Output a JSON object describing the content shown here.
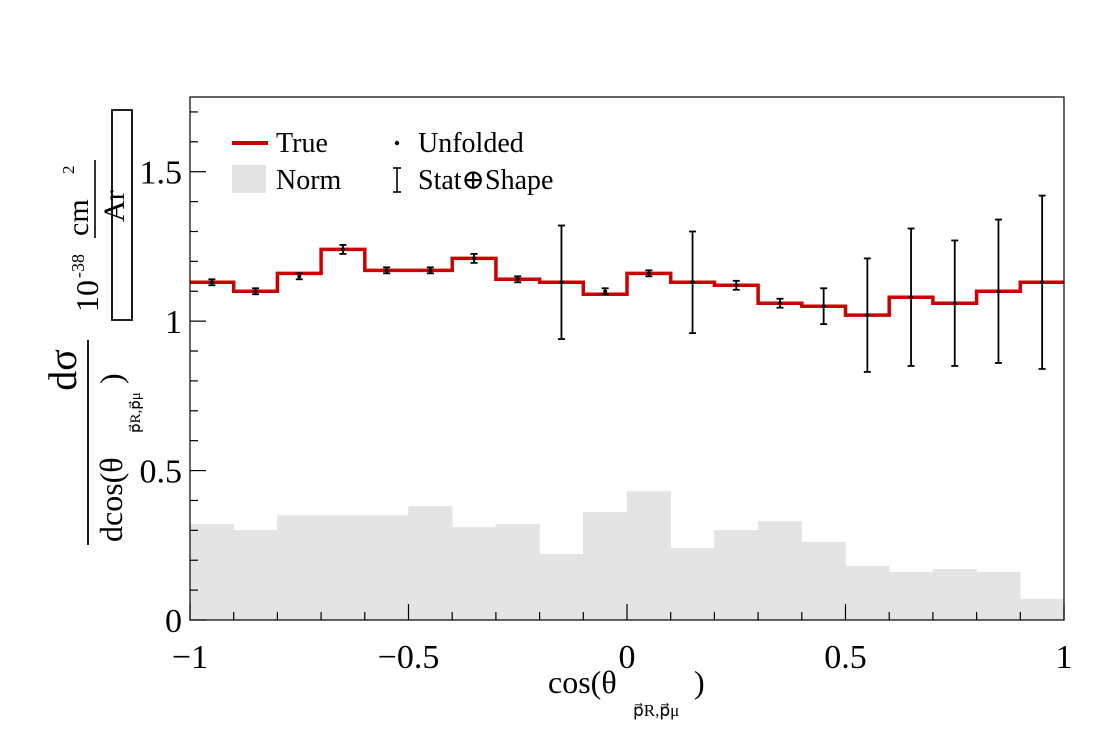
{
  "colors": {
    "true_line": "#cc0000",
    "norm_fill": "#e4e4e4",
    "unfolded": "#000000"
  },
  "legend": {
    "true_label": "True",
    "norm_label": "Norm",
    "unfolded_label": "Unfolded",
    "stat_label": "Stat⊕Shape"
  },
  "axes": {
    "x_title_main": "cos(θ",
    "x_title_sub": "p⃗R,p⃗μ",
    "x_title_close": ")",
    "y_title_num": "dσ",
    "y_title_den": "dcos(θ",
    "y_title_den_sub": "p⃗R,p⃗μ",
    "y_title_den_close": ")",
    "y_units_prefix": "10",
    "y_units_exp": "-38",
    "y_units_num": "cm",
    "y_units_num_exp": "2",
    "y_units_den": "Ar"
  },
  "chart_data": {
    "type": "bar",
    "xlabel": "cos(θ p⃗R,p⃗μ)",
    "ylabel": "dσ / dcos(θ p⃗R,p⃗μ) [10^-38 cm^2 / Ar]",
    "xlim": [
      -1,
      1
    ],
    "ylim": [
      0,
      1.75
    ],
    "x_ticks": [
      -1,
      -0.5,
      0,
      0.5,
      1
    ],
    "x_tick_labels": [
      "−1",
      "−0.5",
      "0",
      "0.5",
      "1"
    ],
    "y_ticks": [
      0,
      0.5,
      1,
      1.5
    ],
    "y_tick_labels": [
      "0",
      "0.5",
      "1",
      "1.5"
    ],
    "bin_edges": [
      -1.0,
      -0.9,
      -0.8,
      -0.7,
      -0.6,
      -0.5,
      -0.4,
      -0.3,
      -0.2,
      -0.1,
      0.0,
      0.1,
      0.2,
      0.3,
      0.4,
      0.5,
      0.6,
      0.7,
      0.8,
      0.9,
      1.0
    ],
    "series": [
      {
        "name": "True",
        "style": "step",
        "values": [
          1.13,
          1.1,
          1.16,
          1.24,
          1.17,
          1.17,
          1.21,
          1.14,
          1.13,
          1.09,
          1.16,
          1.13,
          1.12,
          1.06,
          1.05,
          1.02,
          1.08,
          1.06,
          1.1,
          1.13
        ]
      },
      {
        "name": "Unfolded",
        "style": "points",
        "values": [
          1.13,
          1.1,
          1.15,
          1.24,
          1.17,
          1.17,
          1.21,
          1.14,
          1.13,
          1.1,
          1.16,
          1.13,
          1.12,
          1.06,
          1.05,
          1.02,
          1.08,
          1.06,
          1.1,
          1.13
        ],
        "errors": [
          0.01,
          0.01,
          0.01,
          0.015,
          0.01,
          0.01,
          0.015,
          0.01,
          0.19,
          0.01,
          0.01,
          0.17,
          0.015,
          0.015,
          0.06,
          0.19,
          0.23,
          0.21,
          0.24,
          0.29
        ]
      },
      {
        "name": "Norm",
        "style": "filled-step",
        "values": [
          0.32,
          0.3,
          0.35,
          0.35,
          0.35,
          0.38,
          0.31,
          0.32,
          0.22,
          0.36,
          0.43,
          0.24,
          0.3,
          0.33,
          0.26,
          0.18,
          0.16,
          0.17,
          0.16,
          0.07
        ]
      }
    ],
    "grid": false,
    "legend_position": "top-left"
  }
}
